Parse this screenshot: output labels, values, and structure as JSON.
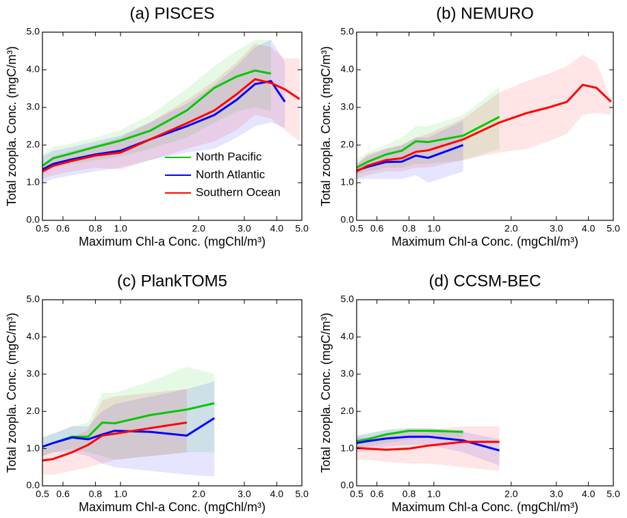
{
  "chart_data": [
    {
      "type": "line",
      "title": "(a) PISCES",
      "x_label": "Maximum Chl-a Conc. (mgChl/m³)",
      "y_label": "Total zoopla. Conc. (mgC/m³)",
      "x_log": true,
      "xlim": [
        0.5,
        5
      ],
      "ylim": [
        0,
        5
      ],
      "xticks": [
        0.5,
        0.6,
        0.8,
        {
          "value": 1,
          "label": "1.0"
        },
        {
          "value": 2,
          "label": "2.0"
        },
        {
          "value": 3,
          "label": "3.0"
        },
        {
          "value": 4,
          "label": "4.0"
        },
        {
          "value": 5,
          "label": "5.0"
        }
      ],
      "yticks": [
        {
          "value": 0,
          "label": "0.0"
        },
        {
          "value": 1,
          "label": "1.0"
        },
        {
          "value": 2,
          "label": "2.0"
        },
        {
          "value": 3,
          "label": "3.0"
        },
        {
          "value": 4,
          "label": "4.0"
        },
        {
          "value": 5,
          "label": "5.0"
        }
      ],
      "legend": "lower right",
      "series": [
        {
          "name": "North Pacific",
          "color": "#00c800",
          "x": [
            0.5,
            0.55,
            0.65,
            0.8,
            1.0,
            1.3,
            1.8,
            2.3,
            2.8,
            3.3,
            3.8
          ],
          "values": [
            1.45,
            1.65,
            1.78,
            1.95,
            2.12,
            2.38,
            2.92,
            3.52,
            3.82,
            3.98,
            3.9
          ],
          "lower": [
            1.2,
            1.4,
            1.5,
            1.6,
            1.7,
            1.9,
            2.2,
            2.6,
            2.9,
            3.0,
            2.9
          ],
          "upper": [
            1.75,
            1.95,
            2.05,
            2.2,
            2.4,
            2.8,
            3.5,
            4.1,
            4.5,
            4.8,
            4.8
          ]
        },
        {
          "name": "North Atlantic",
          "color": "#0000ff",
          "x": [
            0.5,
            0.55,
            0.65,
            0.8,
            1.0,
            1.3,
            1.8,
            2.3,
            2.8,
            3.3,
            3.8,
            4.3
          ],
          "values": [
            1.35,
            1.5,
            1.62,
            1.75,
            1.85,
            2.15,
            2.5,
            2.8,
            3.2,
            3.62,
            3.7,
            3.15
          ],
          "lower": [
            1.0,
            1.1,
            1.2,
            1.3,
            1.4,
            1.6,
            1.8,
            1.9,
            2.2,
            2.5,
            2.6,
            2.45
          ],
          "upper": [
            1.7,
            1.85,
            1.95,
            2.1,
            2.25,
            2.6,
            3.1,
            3.6,
            4.1,
            4.6,
            4.8,
            4.2
          ]
        },
        {
          "name": "Southern Ocean",
          "color": "#ff0000",
          "x": [
            0.5,
            0.55,
            0.65,
            0.8,
            1.0,
            1.3,
            1.8,
            2.3,
            2.8,
            3.3,
            3.8,
            4.3,
            4.9
          ],
          "values": [
            1.3,
            1.45,
            1.58,
            1.72,
            1.8,
            2.15,
            2.58,
            2.92,
            3.35,
            3.75,
            3.65,
            3.48,
            3.22
          ],
          "lower": [
            1.1,
            1.2,
            1.3,
            1.4,
            1.35,
            1.6,
            1.9,
            2.1,
            2.4,
            2.8,
            2.7,
            2.4,
            2.1
          ],
          "upper": [
            1.5,
            1.7,
            1.85,
            2.0,
            2.2,
            2.6,
            3.2,
            3.7,
            4.2,
            4.7,
            4.6,
            4.3,
            4.3
          ]
        }
      ]
    },
    {
      "type": "line",
      "title": "(b) NEMURO",
      "x_label": "Maximum Chl-a Conc. (mgChl/m³)",
      "y_label": "Total zoopla. Conc. (mgC/m³)",
      "x_log": true,
      "xlim": [
        0.5,
        5
      ],
      "ylim": [
        0,
        5
      ],
      "xticks": [
        0.5,
        0.6,
        0.8,
        {
          "value": 1,
          "label": "1.0"
        },
        {
          "value": 2,
          "label": "2.0"
        },
        {
          "value": 3,
          "label": "3.0"
        },
        {
          "value": 4,
          "label": "4.0"
        },
        {
          "value": 5,
          "label": "5.0"
        }
      ],
      "yticks": [
        {
          "value": 0,
          "label": "0.0"
        },
        {
          "value": 1,
          "label": "1.0"
        },
        {
          "value": 2,
          "label": "2.0"
        },
        {
          "value": 3,
          "label": "3.0"
        },
        {
          "value": 4,
          "label": "4.0"
        },
        {
          "value": 5,
          "label": "5.0"
        }
      ],
      "series": [
        {
          "color": "#00c800",
          "x": [
            0.5,
            0.55,
            0.65,
            0.75,
            0.85,
            0.95,
            1.3,
            1.8
          ],
          "values": [
            1.4,
            1.55,
            1.75,
            1.85,
            2.1,
            2.08,
            2.25,
            2.75
          ],
          "lower": [
            1.2,
            1.3,
            1.4,
            1.4,
            1.5,
            1.5,
            1.6,
            1.9
          ],
          "upper": [
            1.6,
            1.8,
            2.0,
            2.2,
            2.5,
            2.5,
            2.8,
            3.55
          ]
        },
        {
          "color": "#0000ff",
          "x": [
            0.5,
            0.55,
            0.65,
            0.75,
            0.85,
            0.95,
            1.3
          ],
          "values": [
            1.32,
            1.42,
            1.55,
            1.56,
            1.72,
            1.66,
            2.0
          ],
          "lower": [
            1.1,
            1.1,
            1.1,
            1.1,
            1.2,
            1.0,
            1.3
          ],
          "upper": [
            1.5,
            1.7,
            1.9,
            2.0,
            2.2,
            2.2,
            2.65
          ]
        },
        {
          "color": "#ff0000",
          "x": [
            0.5,
            0.55,
            0.65,
            0.75,
            0.85,
            0.95,
            1.3,
            1.8,
            2.3,
            2.8,
            3.3,
            3.8,
            4.3,
            4.9
          ],
          "values": [
            1.3,
            1.45,
            1.6,
            1.65,
            1.82,
            1.86,
            2.15,
            2.6,
            2.85,
            3.0,
            3.15,
            3.6,
            3.52,
            3.15
          ],
          "lower": [
            1.1,
            1.2,
            1.3,
            1.3,
            1.4,
            1.4,
            1.6,
            1.8,
            1.9,
            2.1,
            2.3,
            2.8,
            2.85,
            2.8
          ],
          "upper": [
            1.5,
            1.75,
            1.9,
            2.0,
            2.2,
            2.3,
            2.7,
            3.4,
            3.7,
            3.9,
            4.1,
            4.4,
            4.2,
            3.2
          ]
        }
      ]
    },
    {
      "type": "line",
      "title": "(c) PlankTOM5",
      "x_label": "Maximum Chl-a Conc. (mgChl/m³)",
      "y_label": "Total zoopla. Conc. (mgC/m³)",
      "x_log": true,
      "xlim": [
        0.5,
        5
      ],
      "ylim": [
        0,
        5
      ],
      "xticks": [
        0.5,
        0.6,
        0.8,
        {
          "value": 1,
          "label": "1.0"
        },
        {
          "value": 2,
          "label": "2.0"
        },
        {
          "value": 3,
          "label": "3.0"
        },
        {
          "value": 4,
          "label": "4.0"
        },
        {
          "value": 5,
          "label": "5.0"
        }
      ],
      "yticks": [
        {
          "value": 0,
          "label": "0.0"
        },
        {
          "value": 1,
          "label": "1.0"
        },
        {
          "value": 2,
          "label": "2.0"
        },
        {
          "value": 3,
          "label": "3.0"
        },
        {
          "value": 4,
          "label": "4.0"
        },
        {
          "value": 5,
          "label": "5.0"
        }
      ],
      "series": [
        {
          "color": "#00c800",
          "x": [
            0.5,
            0.55,
            0.65,
            0.75,
            0.85,
            0.95,
            1.3,
            1.8,
            2.3
          ],
          "values": [
            1.05,
            1.15,
            1.32,
            1.32,
            1.7,
            1.68,
            1.9,
            2.05,
            2.22
          ],
          "lower": [
            0.8,
            0.9,
            1.0,
            0.9,
            0.8,
            0.7,
            0.8,
            0.9,
            0.9
          ],
          "upper": [
            1.3,
            1.4,
            1.6,
            1.7,
            2.5,
            2.5,
            2.8,
            3.2,
            3.0
          ]
        },
        {
          "color": "#0000ff",
          "x": [
            0.5,
            0.55,
            0.65,
            0.75,
            0.85,
            0.95,
            1.3,
            1.8,
            2.3
          ],
          "values": [
            1.05,
            1.15,
            1.3,
            1.25,
            1.38,
            1.48,
            1.45,
            1.35,
            1.82
          ],
          "lower": [
            0.8,
            0.9,
            0.9,
            0.8,
            0.6,
            0.5,
            0.4,
            0.3,
            0.25
          ],
          "upper": [
            1.3,
            1.4,
            1.6,
            1.6,
            2.0,
            2.2,
            2.4,
            2.6,
            2.8
          ]
        },
        {
          "color": "#ff0000",
          "x": [
            0.5,
            0.55,
            0.65,
            0.75,
            0.85,
            0.95,
            1.3,
            1.8
          ],
          "values": [
            0.68,
            0.72,
            0.9,
            1.1,
            1.35,
            1.4,
            1.55,
            1.7
          ],
          "lower": [
            0.3,
            0.3,
            0.4,
            0.5,
            0.6,
            0.7,
            0.8,
            0.9
          ],
          "upper": [
            1.0,
            1.1,
            1.3,
            1.5,
            2.3,
            2.4,
            2.5,
            2.6
          ]
        }
      ]
    },
    {
      "type": "line",
      "title": "(d) CCSM-BEC",
      "x_label": "Maximum Chl-a Conc. (mgChl/m³)",
      "y_label": "Total zoopla. Conc. (mgC/m³)",
      "x_log": true,
      "xlim": [
        0.5,
        5
      ],
      "ylim": [
        0,
        5
      ],
      "xticks": [
        0.5,
        0.6,
        0.8,
        {
          "value": 1,
          "label": "1.0"
        },
        {
          "value": 2,
          "label": "2.0"
        },
        {
          "value": 3,
          "label": "3.0"
        },
        {
          "value": 4,
          "label": "4.0"
        },
        {
          "value": 5,
          "label": "5.0"
        }
      ],
      "yticks": [
        {
          "value": 0,
          "label": "0.0"
        },
        {
          "value": 1,
          "label": "1.0"
        },
        {
          "value": 2,
          "label": "2.0"
        },
        {
          "value": 3,
          "label": "3.0"
        },
        {
          "value": 4,
          "label": "4.0"
        },
        {
          "value": 5,
          "label": "5.0"
        }
      ],
      "series": [
        {
          "color": "#00c800",
          "x": [
            0.5,
            0.55,
            0.65,
            0.8,
            0.95,
            1.3
          ],
          "values": [
            1.2,
            1.25,
            1.38,
            1.48,
            1.48,
            1.45
          ],
          "lower": [
            1.0,
            1.05,
            1.15,
            1.25,
            1.3,
            1.3
          ],
          "upper": [
            1.35,
            1.4,
            1.5,
            1.55,
            1.55,
            1.5
          ]
        },
        {
          "color": "#0000ff",
          "x": [
            0.5,
            0.55,
            0.65,
            0.8,
            0.95,
            1.3,
            1.8
          ],
          "values": [
            1.15,
            1.2,
            1.27,
            1.32,
            1.32,
            1.22,
            0.95
          ],
          "lower": [
            0.9,
            0.95,
            1.05,
            1.1,
            1.1,
            0.9,
            0.55
          ],
          "upper": [
            1.35,
            1.4,
            1.5,
            1.55,
            1.55,
            1.45,
            1.25
          ]
        },
        {
          "color": "#ff0000",
          "x": [
            0.5,
            0.55,
            0.65,
            0.8,
            0.95,
            1.3,
            1.8
          ],
          "values": [
            1.02,
            1.0,
            0.97,
            1.0,
            1.08,
            1.18,
            1.18
          ],
          "lower": [
            0.7,
            0.7,
            0.65,
            0.6,
            0.6,
            0.5,
            0.4
          ],
          "upper": [
            1.3,
            1.3,
            1.35,
            1.45,
            1.5,
            1.6,
            1.6
          ]
        }
      ]
    }
  ]
}
